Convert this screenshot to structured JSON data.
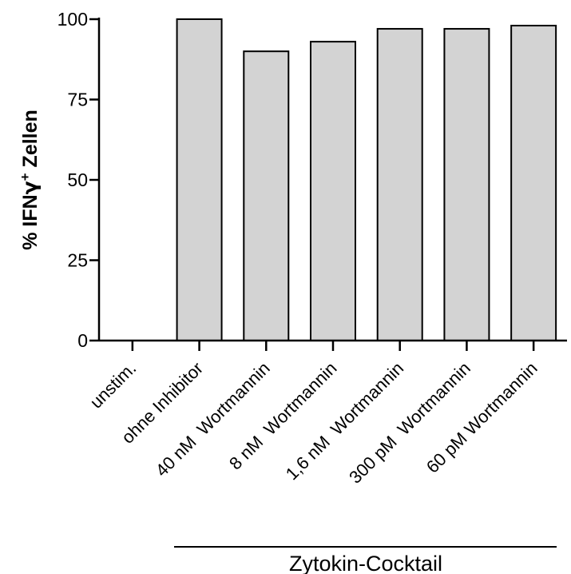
{
  "chart_data": {
    "type": "bar",
    "title": "",
    "xlabel": "",
    "ylabel_prefix": "% IFN",
    "ylabel_greek": "γ",
    "ylabel_sup": "+",
    "ylabel_suffix": " Zellen",
    "ylim": [
      0,
      100
    ],
    "yticks": [
      "0",
      "25",
      "50",
      "75",
      "100"
    ],
    "categories": [
      "unstim.",
      "ohne Inhibitor",
      "40 nM  Wortmannin",
      "8 nM  Wortmannin",
      "1,6 nM  Wortmannin",
      "300 pM  Wortmannin",
      "60 pM Wortmannin"
    ],
    "values": [
      0,
      100,
      90,
      93,
      97,
      97,
      98
    ],
    "bar_color": "#d3d3d3",
    "group_label": "Zytokin-Cocktail",
    "grid": false,
    "legend": "none"
  }
}
